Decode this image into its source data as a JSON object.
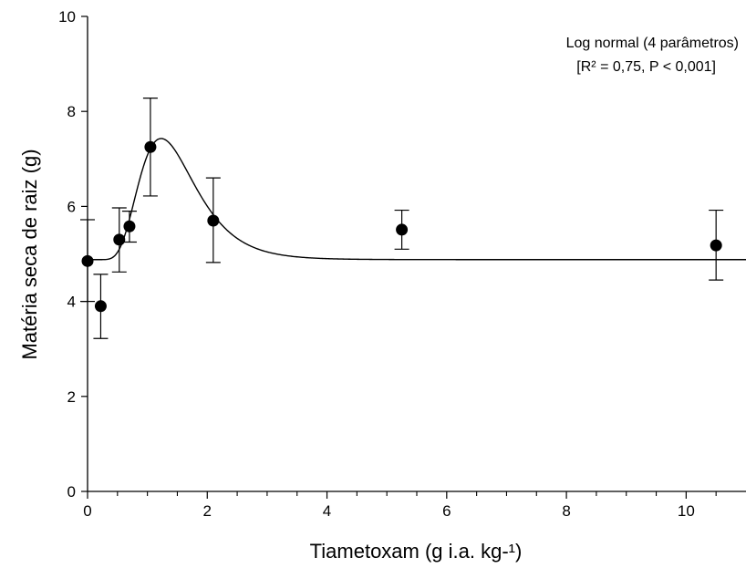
{
  "chart_data": {
    "type": "scatter",
    "xlabel": "Tiametoxam (g i.a. kg-¹)",
    "ylabel": "Matéria seca de raiz (g)",
    "xlim": [
      0,
      11
    ],
    "ylim": [
      0,
      10
    ],
    "x_ticks": [
      0,
      2,
      4,
      6,
      8,
      10
    ],
    "x_minor_ticks": [
      0.5,
      1,
      1.5,
      2.5,
      3,
      3.5,
      4.5,
      5,
      5.5,
      6.5,
      7,
      7.5,
      8.5,
      9,
      9.5,
      10.5
    ],
    "y_ticks": [
      0,
      2,
      4,
      6,
      8,
      10
    ],
    "grid": false,
    "legend": "none",
    "annotation_lines": [
      "Log normal (4 parâmetros)",
      "[R² = 0,75, P < 0,001]"
    ],
    "annotation_position": "top-right",
    "points": [
      {
        "x": 0,
        "y": 4.85,
        "err_low": 4.0,
        "err_high": 5.72
      },
      {
        "x": 0.22,
        "y": 3.9,
        "err_low": 3.22,
        "err_high": 4.57
      },
      {
        "x": 0.53,
        "y": 5.3,
        "err_low": 4.62,
        "err_high": 5.97
      },
      {
        "x": 0.7,
        "y": 5.58,
        "err_low": 5.25,
        "err_high": 5.9
      },
      {
        "x": 1.05,
        "y": 7.25,
        "err_low": 6.22,
        "err_high": 8.28
      },
      {
        "x": 2.1,
        "y": 5.7,
        "err_low": 4.82,
        "err_high": 6.6
      },
      {
        "x": 5.25,
        "y": 5.51,
        "err_low": 5.1,
        "err_high": 5.92
      },
      {
        "x": 10.5,
        "y": 5.18,
        "err_low": 4.45,
        "err_high": 5.92
      }
    ],
    "fit_curve": {
      "model": "log normal 4 parameters",
      "y0": 4.88,
      "a": 2.55,
      "x0": 1.23,
      "b": 0.38,
      "x_range": [
        0,
        11
      ]
    }
  }
}
